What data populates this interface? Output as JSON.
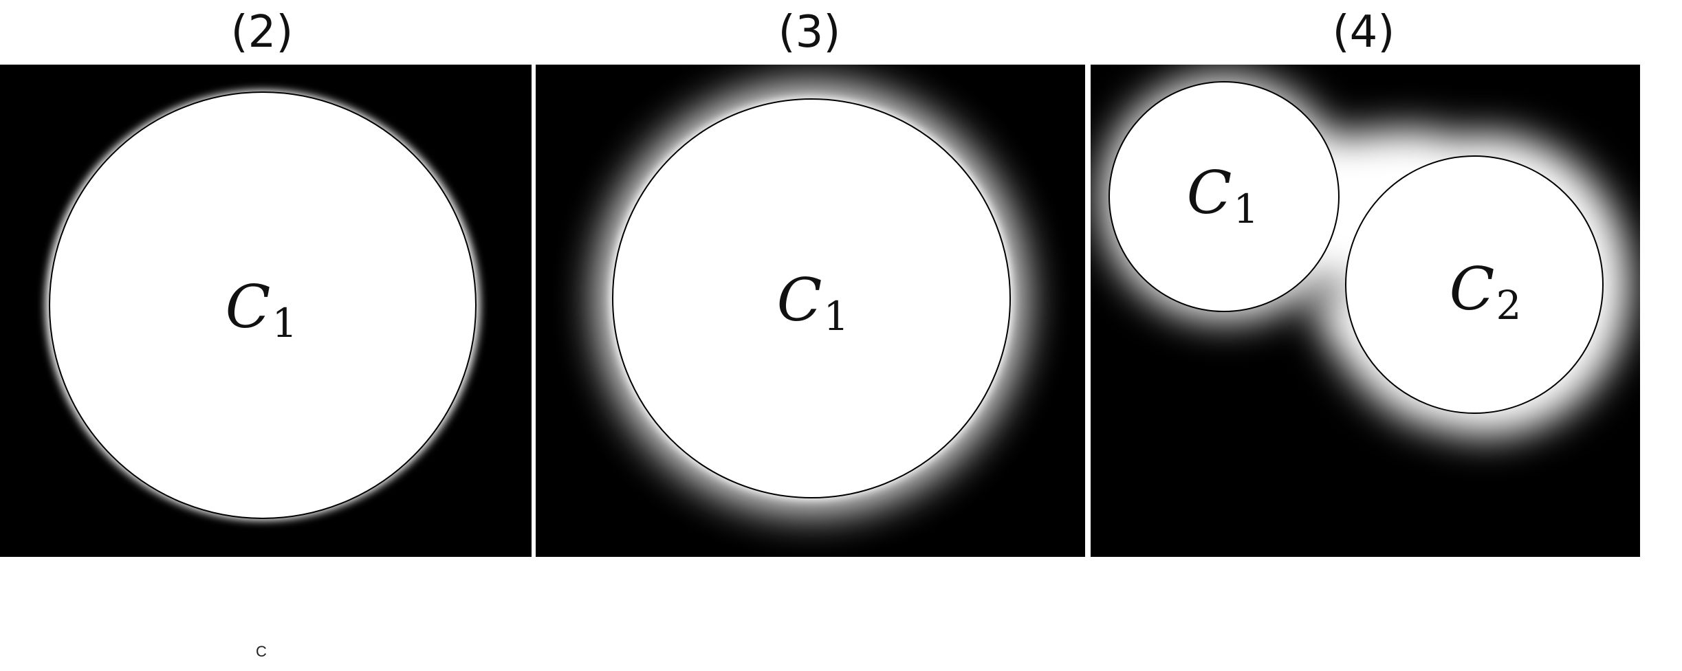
{
  "panels": [
    {
      "title": "(2)",
      "glow": "thin",
      "circles": [
        {
          "label": "C",
          "subscript": "1"
        }
      ]
    },
    {
      "title": "(3)",
      "glow": "wide",
      "circles": [
        {
          "label": "C",
          "subscript": "1"
        }
      ]
    },
    {
      "title": "(4)",
      "glow": "wide-merged",
      "circles": [
        {
          "label": "C",
          "subscript": "1"
        },
        {
          "label": "C",
          "subscript": "2"
        }
      ]
    }
  ],
  "footnote": "C",
  "colors": {
    "background": "#000000",
    "fill": "#ffffff",
    "outline": "#000000",
    "page": "#ffffff"
  }
}
